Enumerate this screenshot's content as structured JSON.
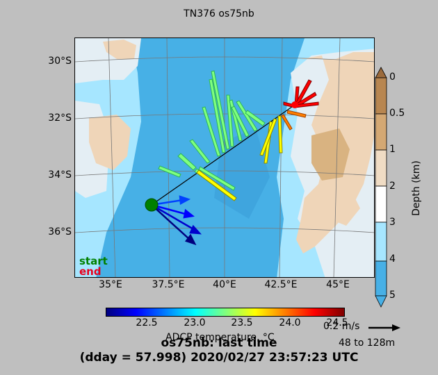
{
  "title": "TN376 os75nb",
  "map": {
    "lat_labels": [
      "30°S",
      "32°S",
      "34°S",
      "36°S"
    ],
    "lon_labels": [
      "35°E",
      "37.5°E",
      "40°E",
      "42.5°E",
      "45°E"
    ],
    "legend": {
      "start": "start",
      "end": "end",
      "start_color": "#008000",
      "end_color": "#e8001c"
    }
  },
  "depth_colorbar": {
    "label": "Depth (km)",
    "ticks": [
      "0",
      "0.5",
      "1",
      "2",
      "3",
      "4",
      "5"
    ],
    "colors": [
      "#9c6b3c",
      "#c8955a",
      "#e5c8a0",
      "#f2f2f2",
      "#a6e6ff",
      "#47b0e6"
    ]
  },
  "temp_colorbar": {
    "label": "ADCP temperature, °C",
    "ticks": [
      "22.5",
      "23.0",
      "23.5",
      "24.0",
      "24.5"
    ]
  },
  "scale": {
    "speed": "0.2 m/s",
    "depth_range": "48 to 128m"
  },
  "footer": {
    "line1": "os75nb: last time",
    "line2": "(dday = 57.998) 2020/02/27 23:57:23 UTC"
  }
}
